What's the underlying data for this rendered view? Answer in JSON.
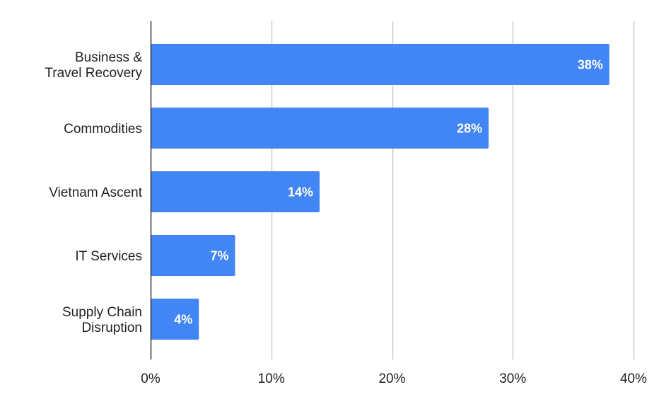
{
  "chart_data": {
    "type": "bar",
    "orientation": "horizontal",
    "title": "",
    "xlabel": "",
    "ylabel": "",
    "categories": [
      [
        "Business &",
        "Travel Recovery"
      ],
      [
        "Commodities"
      ],
      [
        "Vietnam Ascent"
      ],
      [
        "IT Services"
      ],
      [
        "Supply Chain",
        "Disruption"
      ]
    ],
    "values": [
      38,
      28,
      14,
      7,
      4
    ],
    "data_labels": [
      "38%",
      "28%",
      "14%",
      "7%",
      "4%"
    ],
    "xlim": [
      0,
      40
    ],
    "x_ticks": [
      0,
      10,
      20,
      30,
      40
    ],
    "x_tick_labels": [
      "0%",
      "10%",
      "20%",
      "30%",
      "40%"
    ],
    "grid": "vertical",
    "legend": "none",
    "colors": {
      "bar": "#4285f4",
      "grid": "#cccccc",
      "axis": "#333333",
      "label_text": "#222222",
      "data_label_text": "#ffffff"
    }
  }
}
